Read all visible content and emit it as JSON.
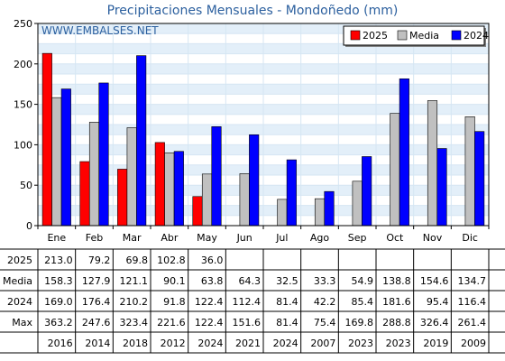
{
  "chart_data": {
    "type": "bar",
    "title": "Precipitaciones Mensuales - Mondoñedo (mm)",
    "watermark": "WWW.EMBALSES.NET",
    "categories": [
      "Ene",
      "Feb",
      "Mar",
      "Abr",
      "May",
      "Jun",
      "Jul",
      "Ago",
      "Sep",
      "Oct",
      "Nov",
      "Dic"
    ],
    "ylim": [
      0,
      250
    ],
    "yticks": [
      0,
      50,
      100,
      150,
      200,
      250
    ],
    "grid": true,
    "legend_position": "top-right",
    "series": [
      {
        "name": "2025",
        "color": "#ff0000",
        "values": [
          213.0,
          79.2,
          69.8,
          102.8,
          36.0,
          null,
          null,
          null,
          null,
          null,
          null,
          null
        ]
      },
      {
        "name": "Media",
        "color": "#c0c0c0",
        "values": [
          158.3,
          127.9,
          121.1,
          90.1,
          63.8,
          64.3,
          32.5,
          33.3,
          54.9,
          138.8,
          154.6,
          134.7
        ]
      },
      {
        "name": "2024",
        "color": "#0000ff",
        "values": [
          169.0,
          176.4,
          210.2,
          91.8,
          122.4,
          112.4,
          81.4,
          42.2,
          85.4,
          181.6,
          95.4,
          116.4
        ]
      }
    ],
    "table": {
      "rows": [
        {
          "label": "2025",
          "cells": [
            "213.0",
            "79.2",
            "69.8",
            "102.8",
            "36.0",
            "",
            "",
            "",
            "",
            "",
            "",
            ""
          ]
        },
        {
          "label": "Media",
          "cells": [
            "158.3",
            "127.9",
            "121.1",
            "90.1",
            "63.8",
            "64.3",
            "32.5",
            "33.3",
            "54.9",
            "138.8",
            "154.6",
            "134.7"
          ]
        },
        {
          "label": "2024",
          "cells": [
            "169.0",
            "176.4",
            "210.2",
            "91.8",
            "122.4",
            "112.4",
            "81.4",
            "42.2",
            "85.4",
            "181.6",
            "95.4",
            "116.4"
          ]
        },
        {
          "label": "Max",
          "cells": [
            "363.2",
            "247.6",
            "323.4",
            "221.6",
            "122.4",
            "151.6",
            "81.4",
            "75.4",
            "169.8",
            "288.8",
            "326.4",
            "261.4"
          ]
        },
        {
          "label": "",
          "cells": [
            "2016",
            "2014",
            "2018",
            "2012",
            "2024",
            "2021",
            "2024",
            "2007",
            "2023",
            "2023",
            "2019",
            "2009"
          ]
        }
      ]
    }
  }
}
